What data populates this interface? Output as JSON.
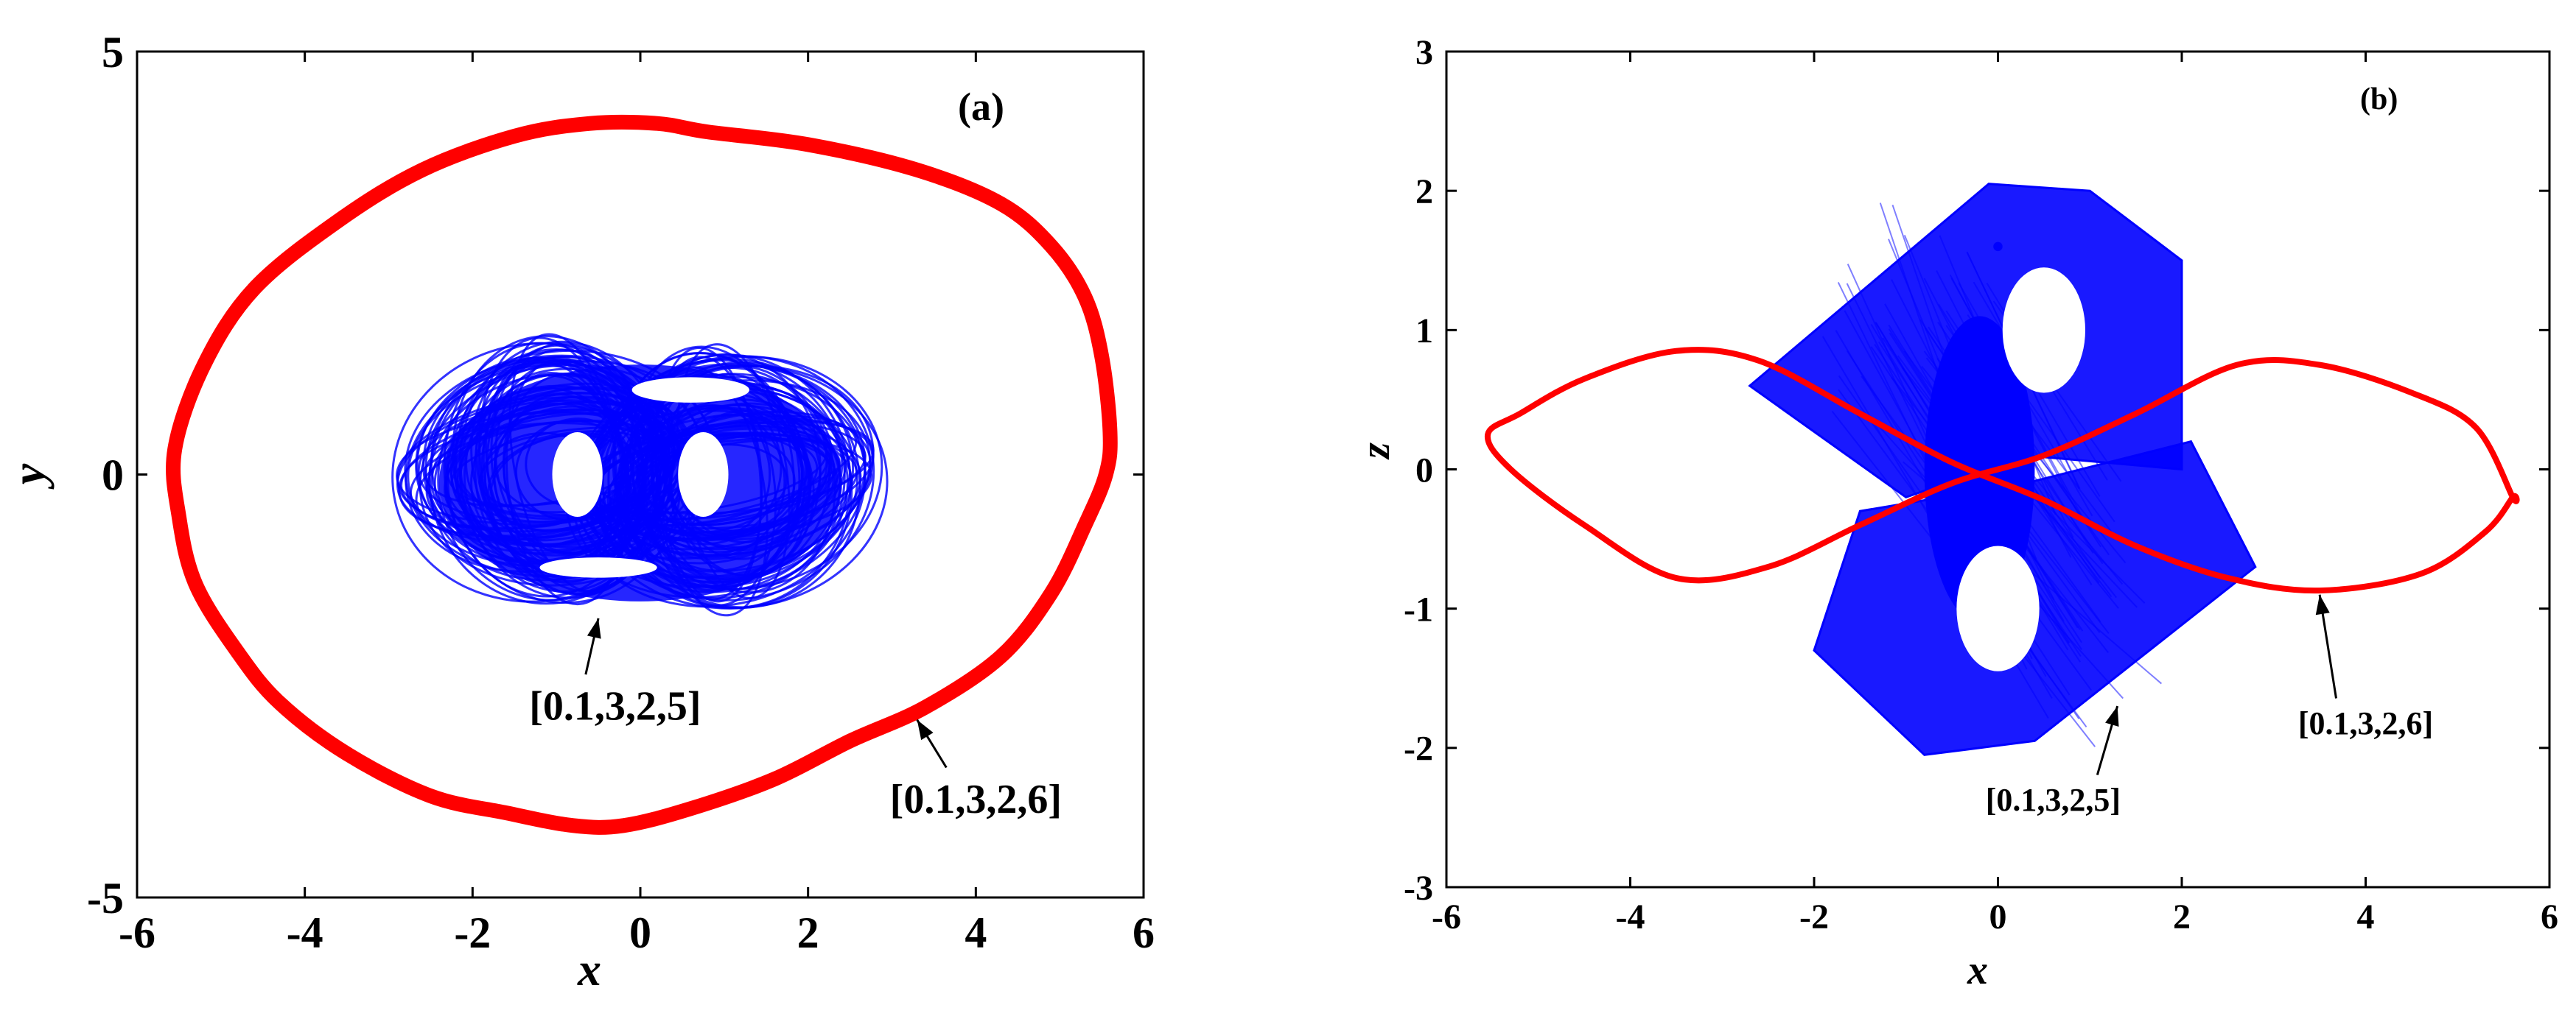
{
  "chart_data": [
    {
      "type": "line",
      "panel_label": "(a)",
      "xlabel": "x",
      "ylabel": "y",
      "xlim": [
        -6,
        6
      ],
      "ylim": [
        -5,
        5
      ],
      "xticks": [
        -6,
        -4,
        -2,
        0,
        2,
        4,
        6
      ],
      "yticks": [
        -5,
        0,
        5
      ],
      "grid": false,
      "series": [
        {
          "color": "#ff0000",
          "style": "thick closed orbit",
          "x": [
            5.6,
            5.5,
            5.3,
            4.9,
            4.3,
            3.3,
            2.0,
            0.8,
            0.2,
            -0.6,
            -1.5,
            -2.6,
            -3.6,
            -4.6,
            -5.2,
            -5.55,
            -5.5,
            -5.3,
            -4.8,
            -4.3,
            -3.5,
            -2.5,
            -1.6,
            -0.8,
            -0.2,
            0.6,
            1.6,
            2.5,
            3.4,
            4.3,
            4.9,
            5.3,
            5.55
          ],
          "y": [
            0.5,
            1.4,
            2.1,
            2.7,
            3.2,
            3.6,
            3.9,
            4.05,
            4.15,
            4.15,
            4.0,
            3.6,
            3.0,
            2.2,
            1.3,
            0.3,
            -0.5,
            -1.3,
            -2.1,
            -2.7,
            -3.3,
            -3.8,
            -4.0,
            -4.15,
            -4.15,
            -3.95,
            -3.6,
            -3.15,
            -2.75,
            -2.15,
            -1.4,
            -0.6,
            0.0
          ]
        },
        {
          "color": "#0000ff",
          "style": "chaotic attractor",
          "x_range": [
            -2.8,
            2.8
          ],
          "y_range": [
            -1.8,
            1.6
          ]
        }
      ],
      "annotations": [
        {
          "text": "[0.1,3,2,5]",
          "x": -0.3,
          "y": -2.9,
          "arrow_to": [
            -0.5,
            -1.7
          ]
        },
        {
          "text": "[0.1,3,2,6]",
          "x": 4.0,
          "y": -4.0,
          "arrow_to": [
            3.3,
            -2.9
          ]
        }
      ]
    },
    {
      "type": "line",
      "panel_label": "(b)",
      "xlabel": "x",
      "ylabel": "z",
      "xlim": [
        -6,
        6
      ],
      "ylim": [
        -3,
        3
      ],
      "xticks": [
        -6,
        -4,
        -2,
        0,
        2,
        4,
        6
      ],
      "yticks": [
        -3,
        -2,
        -1,
        0,
        1,
        2,
        3
      ],
      "grid": false,
      "series": [
        {
          "color": "#ff0000",
          "style": "figure-eight orbit",
          "x": [
            5.6,
            5.3,
            4.6,
            3.5,
            2.5,
            1.5,
            0.5,
            -0.5,
            -1.5,
            -2.6,
            -3.5,
            -4.5,
            -5.2,
            -5.55,
            -5.3,
            -4.5,
            -3.5,
            -2.5,
            -1.5,
            -0.5,
            0.5,
            1.5,
            2.6,
            3.5,
            4.5,
            5.2,
            5.6
          ],
          "y": [
            -0.2,
            -0.45,
            -0.75,
            -0.87,
            -0.78,
            -0.55,
            -0.22,
            0.05,
            0.4,
            0.78,
            0.85,
            0.65,
            0.4,
            0.25,
            0.0,
            -0.4,
            -0.78,
            -0.7,
            -0.4,
            -0.1,
            0.1,
            0.4,
            0.75,
            0.75,
            0.55,
            0.3,
            -0.2
          ]
        },
        {
          "color": "#0000ff",
          "style": "chaotic attractor",
          "x_range": [
            -2.8,
            2.8
          ],
          "y_range": [
            -2.1,
            2.1
          ]
        }
      ],
      "annotations": [
        {
          "text": "[0.1,3,2,5]",
          "x": 0.6,
          "y": -2.45,
          "arrow_to": [
            1.3,
            -1.7
          ]
        },
        {
          "text": "[0.1,3,2,6]",
          "x": 4.0,
          "y": -1.9,
          "arrow_to": [
            3.5,
            -0.9
          ]
        }
      ]
    }
  ]
}
